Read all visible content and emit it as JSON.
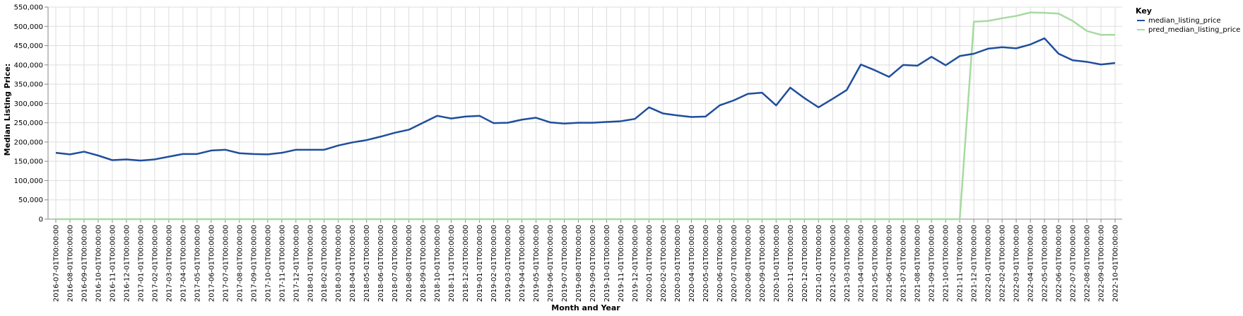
{
  "chart_data": {
    "type": "line",
    "xlabel": "Month and Year",
    "ylabel": "Median Listing Price:",
    "ylim": [
      0,
      550000
    ],
    "yticks": [
      "0",
      "50,000",
      "100,000",
      "150,000",
      "200,000",
      "250,000",
      "300,000",
      "350,000",
      "400,000",
      "450,000",
      "500,000",
      "550,000"
    ],
    "ytick_values": [
      0,
      50000,
      100000,
      150000,
      200000,
      250000,
      300000,
      350000,
      400000,
      450000,
      500000,
      550000
    ],
    "grid": true,
    "legend": {
      "title": "Key",
      "position": "top-right"
    },
    "categories": [
      "2016-07-01T00:00:00",
      "2016-08-01T00:00:00",
      "2016-09-01T00:00:00",
      "2016-10-01T00:00:00",
      "2016-11-01T00:00:00",
      "2016-12-01T00:00:00",
      "2017-01-01T00:00:00",
      "2017-02-01T00:00:00",
      "2017-03-01T00:00:00",
      "2017-04-01T00:00:00",
      "2017-05-01T00:00:00",
      "2017-06-01T00:00:00",
      "2017-07-01T00:00:00",
      "2017-08-01T00:00:00",
      "2017-09-01T00:00:00",
      "2017-10-01T00:00:00",
      "2017-11-01T00:00:00",
      "2017-12-01T00:00:00",
      "2018-01-01T00:00:00",
      "2018-02-01T00:00:00",
      "2018-03-01T00:00:00",
      "2018-04-01T00:00:00",
      "2018-05-01T00:00:00",
      "2018-06-01T00:00:00",
      "2018-07-01T00:00:00",
      "2018-08-01T00:00:00",
      "2018-09-01T00:00:00",
      "2018-10-01T00:00:00",
      "2018-11-01T00:00:00",
      "2018-12-01T00:00:00",
      "2019-01-01T00:00:00",
      "2019-02-01T00:00:00",
      "2019-03-01T00:00:00",
      "2019-04-01T00:00:00",
      "2019-05-01T00:00:00",
      "2019-06-01T00:00:00",
      "2019-07-01T00:00:00",
      "2019-08-01T00:00:00",
      "2019-09-01T00:00:00",
      "2019-10-01T00:00:00",
      "2019-11-01T00:00:00",
      "2019-12-01T00:00:00",
      "2020-01-01T00:00:00",
      "2020-02-01T00:00:00",
      "2020-03-01T00:00:00",
      "2020-04-01T00:00:00",
      "2020-05-01T00:00:00",
      "2020-06-01T00:00:00",
      "2020-07-01T00:00:00",
      "2020-08-01T00:00:00",
      "2020-09-01T00:00:00",
      "2020-10-01T00:00:00",
      "2020-11-01T00:00:00",
      "2020-12-01T00:00:00",
      "2021-01-01T00:00:00",
      "2021-02-01T00:00:00",
      "2021-03-01T00:00:00",
      "2021-04-01T00:00:00",
      "2021-05-01T00:00:00",
      "2021-06-01T00:00:00",
      "2021-07-01T00:00:00",
      "2021-08-01T00:00:00",
      "2021-09-01T00:00:00",
      "2021-10-01T00:00:00",
      "2021-11-01T00:00:00",
      "2021-12-01T00:00:00",
      "2022-01-01T00:00:00",
      "2022-02-01T00:00:00",
      "2022-03-01T00:00:00",
      "2022-04-01T00:00:00",
      "2022-05-01T00:00:00",
      "2022-06-01T00:00:00",
      "2022-07-01T00:00:00",
      "2022-08-01T00:00:00",
      "2022-09-01T00:00:00",
      "2022-10-01T00:00:00"
    ],
    "series": [
      {
        "name": "median_listing_price",
        "color": "#1f4e9c",
        "values": [
          172000,
          168000,
          175000,
          165000,
          153000,
          155000,
          152000,
          155000,
          162000,
          169000,
          169000,
          178000,
          180000,
          171000,
          169000,
          168000,
          172000,
          180000,
          180000,
          180000,
          191000,
          199000,
          205000,
          214000,
          224000,
          232000,
          250000,
          268000,
          261000,
          266000,
          268000,
          249000,
          250000,
          258000,
          263000,
          251000,
          248000,
          250000,
          250000,
          252000,
          254000,
          260000,
          290000,
          274000,
          269000,
          265000,
          266000,
          295000,
          308000,
          325000,
          328000,
          295000,
          341000,
          314000,
          290000,
          312000,
          335000,
          401000,
          386000,
          369000,
          400000,
          398000,
          421000,
          399000,
          423000,
          429000,
          442000,
          446000,
          443000,
          453000,
          469000,
          429000,
          412000,
          408000,
          401000,
          405000
        ]
      },
      {
        "name": "pred_median_listing_price",
        "color": "#a6dba0",
        "values": [
          0,
          0,
          0,
          0,
          0,
          0,
          0,
          0,
          0,
          0,
          0,
          0,
          0,
          0,
          0,
          0,
          0,
          0,
          0,
          0,
          0,
          0,
          0,
          0,
          0,
          0,
          0,
          0,
          0,
          0,
          0,
          0,
          0,
          0,
          0,
          0,
          0,
          0,
          0,
          0,
          0,
          0,
          0,
          0,
          0,
          0,
          0,
          0,
          0,
          0,
          0,
          0,
          0,
          0,
          0,
          0,
          0,
          0,
          0,
          0,
          0,
          0,
          0,
          0,
          0,
          512000,
          514000,
          521000,
          527000,
          536000,
          535000,
          533000,
          514000,
          488000,
          478000,
          478000
        ]
      }
    ]
  }
}
